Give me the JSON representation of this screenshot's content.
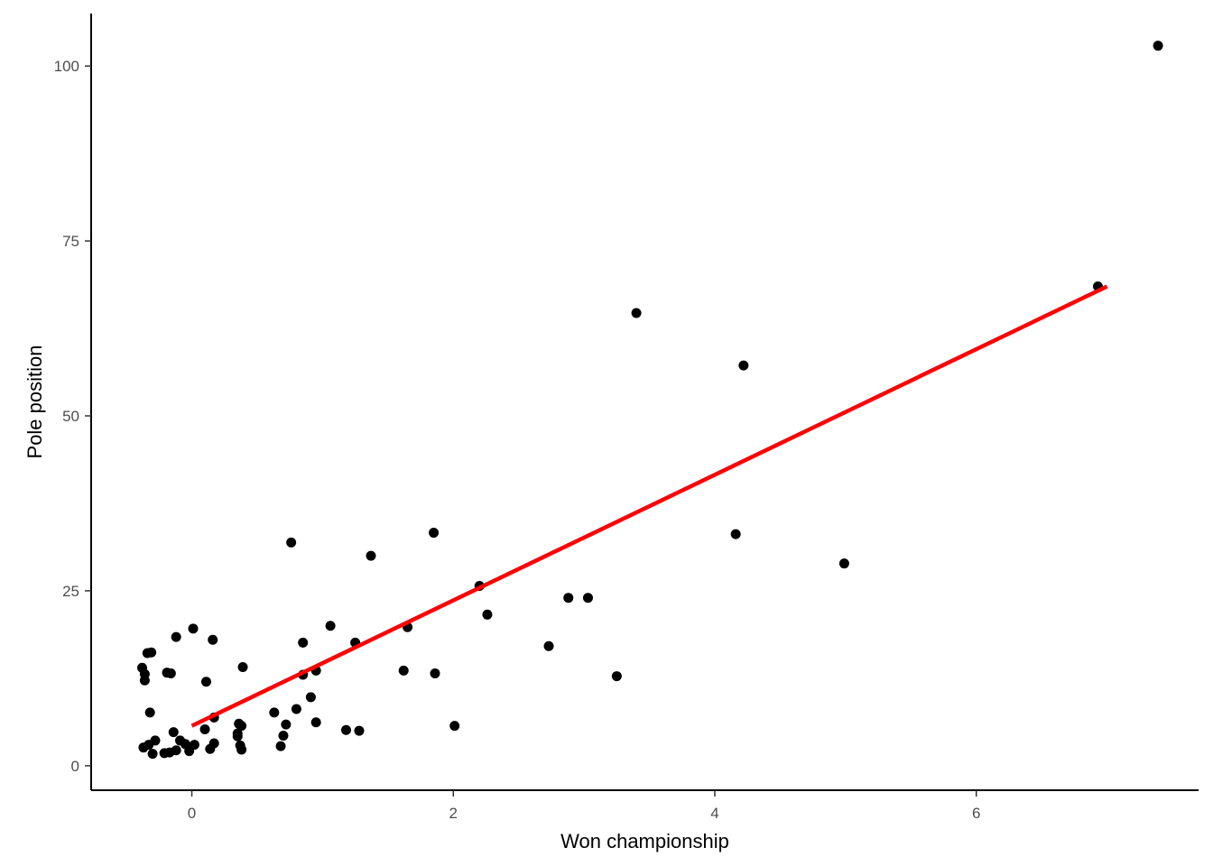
{
  "chart_data": {
    "type": "scatter",
    "title": "",
    "xlabel": "Won championship",
    "ylabel": "Pole position",
    "xlim": [
      -0.77,
      7.7
    ],
    "ylim": [
      -3.5,
      107.5
    ],
    "x_ticks": [
      0,
      2,
      4,
      6
    ],
    "y_ticks": [
      0,
      25,
      50,
      75,
      100
    ],
    "grid": false,
    "legend": "none",
    "point_color": "#000000",
    "fit_line": {
      "x": [
        0,
        7
      ],
      "y": [
        5.7,
        68.5
      ],
      "color": "#ff0000"
    },
    "points": [
      {
        "x": 7.39,
        "y": 102.9
      },
      {
        "x": 6.93,
        "y": 68.5
      },
      {
        "x": 3.4,
        "y": 64.7
      },
      {
        "x": 4.22,
        "y": 57.2
      },
      {
        "x": 0.76,
        "y": 31.9
      },
      {
        "x": 1.85,
        "y": 33.3
      },
      {
        "x": 1.37,
        "y": 30.0
      },
      {
        "x": 4.16,
        "y": 33.1
      },
      {
        "x": 4.99,
        "y": 28.9
      },
      {
        "x": 2.2,
        "y": 25.7
      },
      {
        "x": 2.26,
        "y": 21.6
      },
      {
        "x": 2.88,
        "y": 24.0
      },
      {
        "x": 3.03,
        "y": 24.0
      },
      {
        "x": 2.73,
        "y": 17.1
      },
      {
        "x": 3.25,
        "y": 12.8
      },
      {
        "x": 1.65,
        "y": 19.8
      },
      {
        "x": 1.62,
        "y": 13.6
      },
      {
        "x": 1.86,
        "y": 13.2
      },
      {
        "x": 2.01,
        "y": 5.7
      },
      {
        "x": 1.06,
        "y": 20.0
      },
      {
        "x": 1.25,
        "y": 17.6
      },
      {
        "x": 0.85,
        "y": 17.6
      },
      {
        "x": 0.95,
        "y": 13.6
      },
      {
        "x": 0.85,
        "y": 13.0
      },
      {
        "x": 0.91,
        "y": 9.8
      },
      {
        "x": 0.8,
        "y": 8.1
      },
      {
        "x": 0.95,
        "y": 6.2
      },
      {
        "x": 1.18,
        "y": 5.1
      },
      {
        "x": 1.28,
        "y": 5.0
      },
      {
        "x": 0.63,
        "y": 7.6
      },
      {
        "x": 0.72,
        "y": 5.9
      },
      {
        "x": 0.7,
        "y": 4.3
      },
      {
        "x": 0.68,
        "y": 2.8
      },
      {
        "x": 0.01,
        "y": 19.6
      },
      {
        "x": 0.16,
        "y": 18.0
      },
      {
        "x": -0.12,
        "y": 18.4
      },
      {
        "x": -0.31,
        "y": 16.2
      },
      {
        "x": -0.34,
        "y": 16.1
      },
      {
        "x": -0.38,
        "y": 14.0
      },
      {
        "x": -0.36,
        "y": 13.1
      },
      {
        "x": -0.19,
        "y": 13.3
      },
      {
        "x": -0.16,
        "y": 13.2
      },
      {
        "x": -0.36,
        "y": 12.2
      },
      {
        "x": 0.11,
        "y": 12.0
      },
      {
        "x": 0.39,
        "y": 14.1
      },
      {
        "x": -0.32,
        "y": 7.6
      },
      {
        "x": 0.17,
        "y": 6.9
      },
      {
        "x": 0.36,
        "y": 6.0
      },
      {
        "x": 0.38,
        "y": 5.7
      },
      {
        "x": 0.1,
        "y": 5.2
      },
      {
        "x": -0.14,
        "y": 4.8
      },
      {
        "x": 0.35,
        "y": 4.6
      },
      {
        "x": 0.35,
        "y": 4.2
      },
      {
        "x": -0.28,
        "y": 3.6
      },
      {
        "x": -0.09,
        "y": 3.6
      },
      {
        "x": -0.05,
        "y": 3.1
      },
      {
        "x": 0.02,
        "y": 3.0
      },
      {
        "x": 0.17,
        "y": 3.2
      },
      {
        "x": 0.37,
        "y": 2.9
      },
      {
        "x": 0.38,
        "y": 2.3
      },
      {
        "x": 0.14,
        "y": 2.4
      },
      {
        "x": -0.02,
        "y": 2.1
      },
      {
        "x": -0.12,
        "y": 2.2
      },
      {
        "x": -0.17,
        "y": 1.9
      },
      {
        "x": -0.21,
        "y": 1.8
      },
      {
        "x": -0.3,
        "y": 1.7
      },
      {
        "x": -0.33,
        "y": 3.0
      },
      {
        "x": -0.37,
        "y": 2.6
      }
    ]
  }
}
